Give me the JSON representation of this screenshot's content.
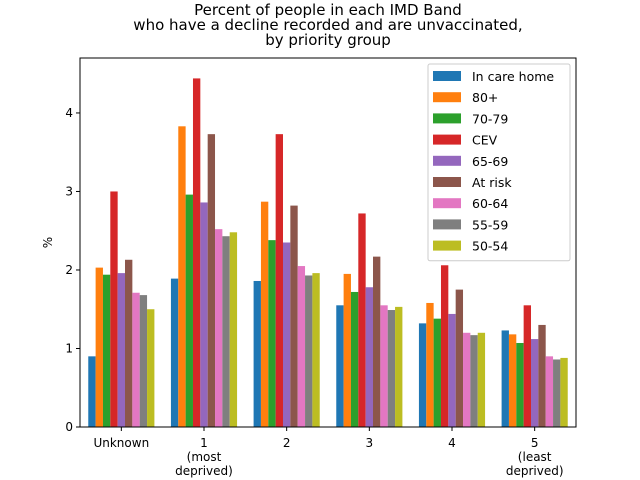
{
  "chart_data": {
    "type": "bar",
    "title_lines": [
      "Percent of people in each IMD Band",
      "who have a decline recorded and are unvaccinated,",
      "by priority group"
    ],
    "xlabel": "",
    "ylabel": "%",
    "ylim": [
      0,
      4.7
    ],
    "yticks": [
      "0",
      "1",
      "2",
      "3",
      "4"
    ],
    "grid": false,
    "legend_position": "top-right",
    "categories": [
      [
        "Unknown"
      ],
      [
        "1",
        "(most",
        "deprived)"
      ],
      [
        "2"
      ],
      [
        "3"
      ],
      [
        "4"
      ],
      [
        "5",
        "(least",
        "deprived)"
      ]
    ],
    "series": [
      {
        "name": "In care home",
        "color": "#1f77b4",
        "values": [
          0.9,
          1.89,
          1.86,
          1.55,
          1.32,
          1.23
        ]
      },
      {
        "name": "80+",
        "color": "#ff7f0e",
        "values": [
          2.03,
          3.83,
          2.87,
          1.95,
          1.58,
          1.18
        ]
      },
      {
        "name": "70-79",
        "color": "#2ca02c",
        "values": [
          1.94,
          2.96,
          2.38,
          1.72,
          1.38,
          1.07
        ]
      },
      {
        "name": "CEV",
        "color": "#d62728",
        "values": [
          3.0,
          4.44,
          3.73,
          2.72,
          2.06,
          1.55
        ]
      },
      {
        "name": "65-69",
        "color": "#9467bd",
        "values": [
          1.96,
          2.86,
          2.35,
          1.78,
          1.44,
          1.12
        ]
      },
      {
        "name": "At risk",
        "color": "#8c564b",
        "values": [
          2.13,
          3.73,
          2.82,
          2.17,
          1.75,
          1.3
        ]
      },
      {
        "name": "60-64",
        "color": "#e377c2",
        "values": [
          1.71,
          2.52,
          2.05,
          1.55,
          1.2,
          0.9
        ]
      },
      {
        "name": "55-59",
        "color": "#7f7f7f",
        "values": [
          1.68,
          2.43,
          1.93,
          1.49,
          1.17,
          0.86
        ]
      },
      {
        "name": "50-54",
        "color": "#bcbd22",
        "values": [
          1.5,
          2.48,
          1.96,
          1.53,
          1.2,
          0.88
        ]
      }
    ]
  }
}
